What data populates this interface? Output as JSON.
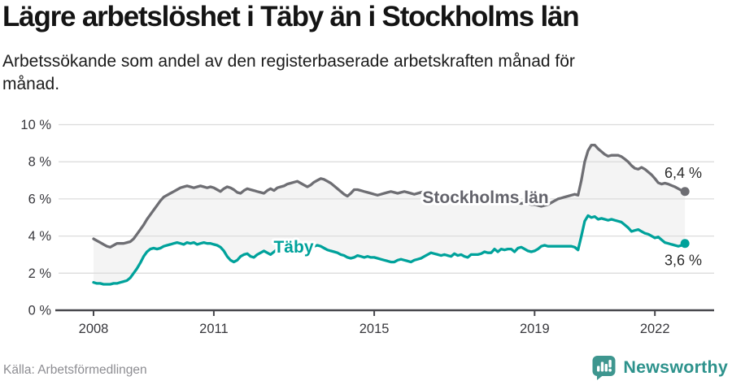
{
  "header": {
    "title": "Lägre arbetslöshet i Täby än i Stockholms län",
    "subtitle": "Arbetssökande som andel av den registerbaserade arbetskraften månad för månad."
  },
  "footer": {
    "source": "Källa: Arbetsförmedlingen",
    "brand_name": "Newsworthy",
    "brand_icon": "bar-chart-speech-bubble-icon",
    "brand_color": "#2d928c"
  },
  "colors": {
    "background": "#ffffff",
    "gridline": "#dcdcdc",
    "axis": "#47474c",
    "area_fill": "#f4f4f4",
    "stockholm_gray": "#6e6e73",
    "taby_teal": "#00a29b"
  },
  "chart_data": {
    "type": "line",
    "title": "Lägre arbetslöshet i Täby än i Stockholms län",
    "frequency": "monthly",
    "x_start": "2008-01",
    "x_end": "2022-10",
    "grid": true,
    "legend_position": "inline-on-lines",
    "area_fill_between_series": true,
    "x_axis": {
      "ticks": [
        2008,
        2011,
        2015,
        2019,
        2022
      ]
    },
    "y_axis": {
      "unit": "%",
      "range": [
        0,
        10
      ],
      "ticks": [
        {
          "value": 0,
          "label": "0 %"
        },
        {
          "value": 2,
          "label": "2 %"
        },
        {
          "value": 4,
          "label": "4 %"
        },
        {
          "value": 6,
          "label": "6 %"
        },
        {
          "value": 8,
          "label": "8 %"
        },
        {
          "value": 10,
          "label": "10 %"
        }
      ]
    },
    "series": [
      {
        "name": "Stockholms län",
        "color": "#6e6e73",
        "label_color": "#63636b",
        "end_value": 6.4,
        "end_label": "6,4 %",
        "values": [
          3.85,
          3.75,
          3.65,
          3.55,
          3.45,
          3.4,
          3.5,
          3.6,
          3.6,
          3.6,
          3.65,
          3.7,
          3.85,
          4.1,
          4.35,
          4.6,
          4.9,
          5.15,
          5.4,
          5.65,
          5.9,
          6.1,
          6.2,
          6.3,
          6.4,
          6.5,
          6.6,
          6.65,
          6.7,
          6.65,
          6.6,
          6.65,
          6.7,
          6.65,
          6.6,
          6.65,
          6.6,
          6.5,
          6.4,
          6.55,
          6.65,
          6.6,
          6.5,
          6.35,
          6.3,
          6.45,
          6.55,
          6.5,
          6.45,
          6.4,
          6.35,
          6.3,
          6.45,
          6.55,
          6.45,
          6.6,
          6.65,
          6.7,
          6.8,
          6.85,
          6.9,
          6.95,
          6.85,
          6.75,
          6.65,
          6.75,
          6.9,
          7.0,
          7.1,
          7.05,
          6.95,
          6.85,
          6.7,
          6.55,
          6.4,
          6.25,
          6.15,
          6.3,
          6.5,
          6.5,
          6.45,
          6.4,
          6.35,
          6.3,
          6.25,
          6.2,
          6.25,
          6.3,
          6.35,
          6.4,
          6.35,
          6.3,
          6.35,
          6.4,
          6.35,
          6.3,
          6.25,
          6.3,
          6.35,
          6.4,
          6.35,
          6.3,
          6.35,
          6.3,
          6.25,
          6.3,
          6.25,
          6.2,
          6.2,
          6.15,
          6.1,
          6.15,
          6.1,
          6.05,
          6.1,
          6.05,
          6.0,
          6.05,
          6.0,
          6.0,
          5.95,
          5.9,
          5.85,
          5.9,
          5.85,
          5.8,
          5.85,
          5.8,
          5.75,
          5.8,
          5.75,
          5.7,
          5.7,
          5.65,
          5.6,
          5.65,
          5.7,
          5.8,
          5.9,
          6.0,
          6.05,
          6.1,
          6.15,
          6.2,
          6.25,
          6.2,
          7.0,
          8.0,
          8.6,
          8.9,
          8.9,
          8.7,
          8.55,
          8.4,
          8.3,
          8.35,
          8.35,
          8.35,
          8.28,
          8.15,
          8.0,
          7.8,
          7.65,
          7.6,
          7.7,
          7.6,
          7.45,
          7.3,
          7.1,
          6.87,
          6.8,
          6.85,
          6.8,
          6.72,
          6.65,
          6.55,
          6.45,
          6.4
        ]
      },
      {
        "name": "Täby",
        "color": "#00a29b",
        "label_color": "#00a29b",
        "end_value": 3.6,
        "end_label": "3,6 %",
        "values": [
          1.5,
          1.45,
          1.45,
          1.4,
          1.4,
          1.4,
          1.45,
          1.45,
          1.5,
          1.55,
          1.6,
          1.75,
          2.0,
          2.25,
          2.55,
          2.9,
          3.15,
          3.3,
          3.35,
          3.3,
          3.35,
          3.45,
          3.5,
          3.55,
          3.6,
          3.65,
          3.6,
          3.55,
          3.65,
          3.6,
          3.65,
          3.55,
          3.6,
          3.65,
          3.6,
          3.6,
          3.55,
          3.5,
          3.4,
          3.2,
          2.9,
          2.7,
          2.6,
          2.7,
          2.9,
          3.0,
          3.05,
          2.9,
          2.85,
          3.0,
          3.1,
          3.2,
          3.1,
          3.0,
          3.15,
          3.3,
          3.25,
          3.2,
          3.25,
          3.3,
          3.35,
          3.4,
          3.45,
          3.5,
          3.45,
          3.4,
          3.45,
          3.5,
          3.45,
          3.35,
          3.25,
          3.2,
          3.15,
          3.1,
          3.0,
          2.95,
          2.85,
          2.8,
          2.85,
          2.95,
          2.9,
          2.85,
          2.9,
          2.85,
          2.85,
          2.8,
          2.75,
          2.7,
          2.65,
          2.6,
          2.6,
          2.7,
          2.75,
          2.7,
          2.65,
          2.6,
          2.7,
          2.75,
          2.8,
          2.9,
          3.0,
          3.1,
          3.05,
          3.0,
          2.95,
          3.0,
          2.95,
          2.9,
          3.05,
          2.95,
          3.0,
          2.9,
          2.85,
          3.0,
          3.0,
          3.0,
          3.05,
          3.15,
          3.1,
          3.1,
          3.3,
          3.15,
          3.3,
          3.25,
          3.3,
          3.3,
          3.15,
          3.35,
          3.4,
          3.3,
          3.2,
          3.15,
          3.2,
          3.3,
          3.45,
          3.5,
          3.45,
          3.45,
          3.45,
          3.45,
          3.45,
          3.45,
          3.45,
          3.45,
          3.4,
          3.25,
          4.0,
          4.8,
          5.1,
          5.0,
          5.05,
          4.9,
          4.95,
          4.9,
          4.85,
          4.9,
          4.85,
          4.8,
          4.75,
          4.6,
          4.45,
          4.25,
          4.3,
          4.35,
          4.25,
          4.15,
          4.1,
          4.0,
          3.9,
          3.95,
          3.8,
          3.65,
          3.6,
          3.55,
          3.5,
          3.45,
          3.5,
          3.6
        ]
      }
    ]
  }
}
